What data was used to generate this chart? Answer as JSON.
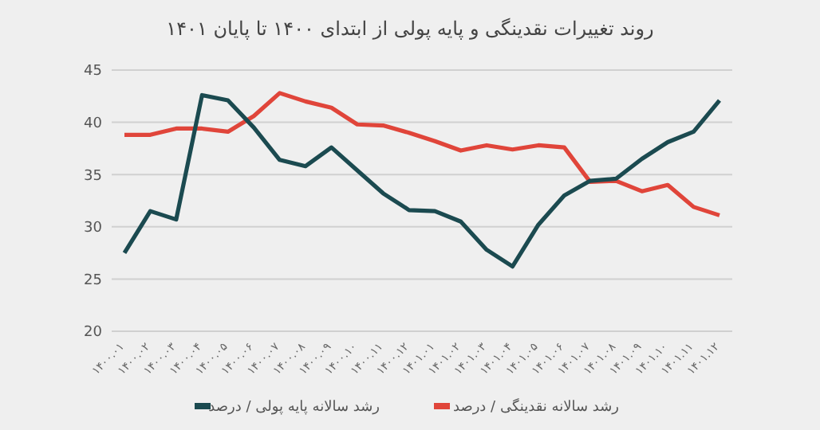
{
  "chart_data": {
    "type": "line",
    "title": "روند تغییرات نقدینگی و پایه پولی از ابتدای ۱۴۰۰ تا پایان ۱۴۰۱",
    "categories": [
      "۱۴۰۰.۰۱",
      "۱۴۰۰.۰۲",
      "۱۴۰۰.۰۳",
      "۱۴۰۰.۰۴",
      "۱۴۰۰.۰۵",
      "۱۴۰۰.۰۶",
      "۱۴۰۰.۰۷",
      "۱۴۰۰.۰۸",
      "۱۴۰۰.۰۹",
      "۱۴۰۰.۱۰",
      "۱۴۰۰.۱۱",
      "۱۴۰۰.۱۲",
      "۱۴۰۱.۰۱",
      "۱۴۰۱.۰۲",
      "۱۴۰۱.۰۳",
      "۱۴۰۱.۰۴",
      "۱۴۰۱.۰۵",
      "۱۴۰۱.۰۶",
      "۱۴۰۱.۰۷",
      "۱۴۰۱.۰۸",
      "۱۴۰۱.۰۹",
      "۱۴۰۱.۱۰",
      "۱۴۰۱.۱۱",
      "۱۴۰۱.۱۲"
    ],
    "series": [
      {
        "name": "رشد سالانه نقدینگی / درصد",
        "color": "#e0453a",
        "values": [
          38.8,
          38.8,
          39.4,
          39.4,
          39.1,
          40.6,
          42.8,
          42.0,
          41.4,
          39.8,
          39.7,
          39.0,
          38.2,
          37.3,
          37.8,
          37.4,
          37.8,
          37.6,
          34.3,
          34.4,
          33.4,
          34.0,
          31.9,
          31.1
        ]
      },
      {
        "name": "رشد سالانه پایه پولی / درصد",
        "color": "#1b4a50",
        "values": [
          27.5,
          31.5,
          30.7,
          42.6,
          42.1,
          39.5,
          36.4,
          35.8,
          37.6,
          35.4,
          33.2,
          31.6,
          31.5,
          30.5,
          27.8,
          26.2,
          30.2,
          33.0,
          34.4,
          34.6,
          36.5,
          38.1,
          39.1,
          42.1
        ]
      }
    ],
    "ylim": [
      20,
      45
    ],
    "yticks": [
      20,
      25,
      30,
      35,
      40,
      45
    ],
    "grid": "y",
    "legend": "bottom",
    "marker": "none",
    "line_style": "solid"
  }
}
